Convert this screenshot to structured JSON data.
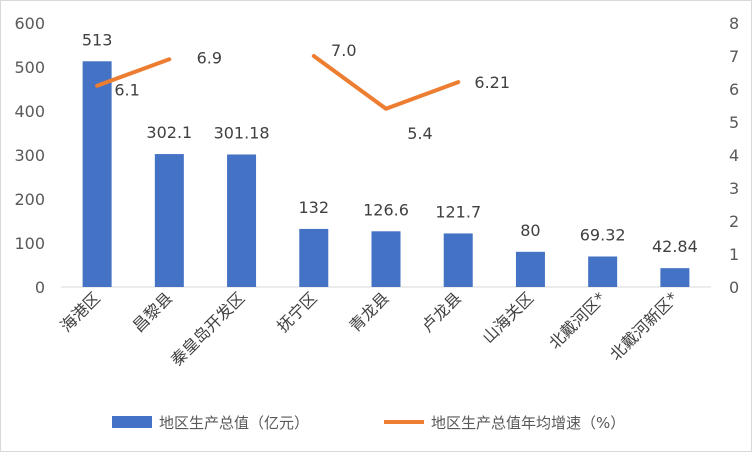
{
  "chart_data": {
    "type": "bar",
    "categories": [
      "海港区",
      "昌黎县",
      "秦皇岛开发区",
      "抚宁区",
      "青龙县",
      "卢龙县",
      "山海关区",
      "北戴河区*",
      "北戴河新区*"
    ],
    "series": [
      {
        "name": "地区生产总值（亿元）",
        "type": "bar",
        "axis": "left",
        "color": "#4472C4",
        "values": [
          513,
          302.1,
          301.18,
          132,
          126.6,
          121.7,
          80,
          69.32,
          42.84
        ],
        "labels": [
          "513",
          "302.1",
          "301.18",
          "132",
          "126.6",
          "121.7",
          "80",
          "69.32",
          "42.84"
        ]
      },
      {
        "name": "地区生产总值年均增速（%）",
        "type": "line",
        "axis": "right",
        "color": "#ED7D31",
        "segments": [
          {
            "category_indices": [
              0,
              1
            ],
            "values": [
              6.1,
              6.9
            ],
            "labels": [
              "6.1",
              "6.9"
            ]
          },
          {
            "category_indices": [
              3,
              4,
              5
            ],
            "values": [
              7.0,
              5.4,
              6.21
            ],
            "labels": [
              "7.0",
              "5.4",
              "6.21"
            ]
          }
        ]
      }
    ],
    "y_left": {
      "min": 0,
      "max": 600,
      "step": 100,
      "ticks": [
        "0",
        "100",
        "200",
        "300",
        "400",
        "500",
        "600"
      ]
    },
    "y_right": {
      "min": 0,
      "max": 8,
      "step": 1,
      "ticks": [
        "0",
        "1",
        "2",
        "3",
        "4",
        "5",
        "6",
        "7",
        "8"
      ]
    },
    "grid": false,
    "legend": {
      "position": "bottom",
      "items": [
        {
          "label": "地区生产总值（亿元）",
          "kind": "bar",
          "color": "#4472C4"
        },
        {
          "label": "地区生产总值年均增速（%）",
          "kind": "line",
          "color": "#ED7D31"
        }
      ]
    }
  }
}
